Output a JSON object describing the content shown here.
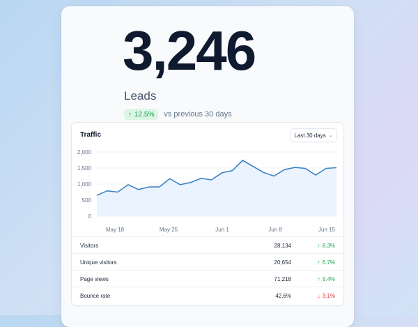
{
  "metric": {
    "value": "3,246",
    "label": "Leads",
    "change": "12.5%",
    "change_direction": "up",
    "comparison": "vs previous 30 days"
  },
  "panel": {
    "title": "Traffic",
    "range_label": "Last 30 days",
    "range_icon": "chevron-down-icon"
  },
  "colors": {
    "line": "#3b82c4",
    "area": "#dbeafe",
    "up": "#16a34a",
    "down": "#dc2626"
  },
  "chart_data": {
    "type": "area",
    "title": "Traffic",
    "xlabel": "",
    "ylabel": "",
    "x_ticks": [
      "May 18",
      "May 25",
      "Jun 1",
      "Jun 8",
      "Jun 15"
    ],
    "y_ticks": [
      "0",
      "500",
      "1,000",
      "1,500",
      "2,000"
    ],
    "ylim": [
      0,
      2000
    ],
    "grid": true,
    "values": [
      650,
      790,
      750,
      980,
      830,
      910,
      910,
      1170,
      980,
      1050,
      1180,
      1130,
      1350,
      1420,
      1740,
      1550,
      1360,
      1250,
      1450,
      1520,
      1490,
      1280,
      1490,
      1510
    ]
  },
  "stats": [
    {
      "name": "Visitors",
      "value": "28,134",
      "change": "8.3%",
      "direction": "up",
      "icon": "arrow-up-icon"
    },
    {
      "name": "Unique visitors",
      "value": "20,654",
      "change": "6.7%",
      "direction": "up",
      "icon": "arrow-up-icon"
    },
    {
      "name": "Page views",
      "value": "71,218",
      "change": "9.4%",
      "direction": "up",
      "icon": "arrow-up-icon"
    },
    {
      "name": "Bounce rate",
      "value": "42.6%",
      "change": "3.1%",
      "direction": "down",
      "icon": "arrow-down-icon"
    }
  ]
}
